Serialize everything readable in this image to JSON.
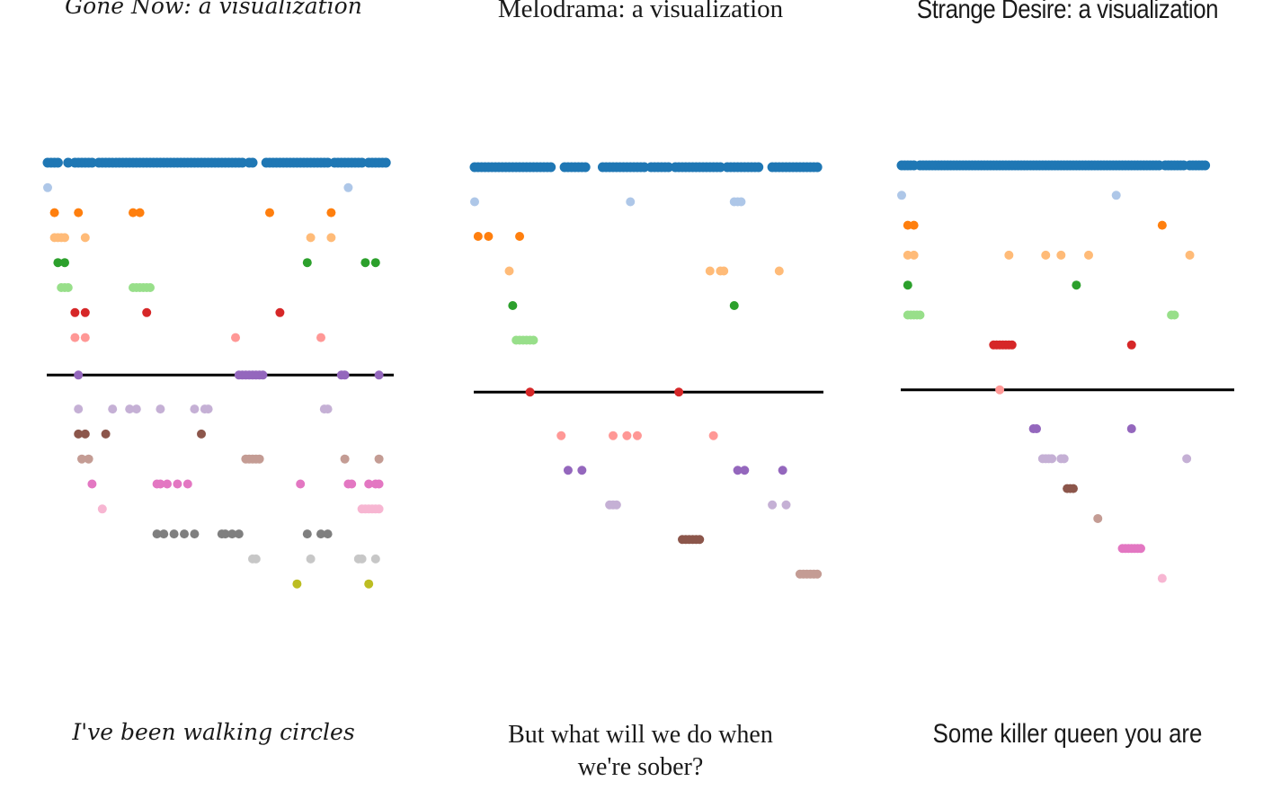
{
  "panels": [
    {
      "title": "Gone Now: a visualization",
      "caption": "I've been walking circles"
    },
    {
      "title": "Melodrama: a visualization",
      "caption": "But what will we do when we're sober?"
    },
    {
      "title": "Strange Desire: a visualization",
      "caption": "Some killer queen you are"
    }
  ],
  "palette": [
    "#1f77b4",
    "#aec7e8",
    "#ff7f0e",
    "#ffbb78",
    "#2ca02c",
    "#98df8a",
    "#d62728",
    "#ff9896",
    "#9467bd",
    "#c5b0d5",
    "#8c564b",
    "#c49c94",
    "#e377c2",
    "#f7b6d2",
    "#7f7f7f",
    "#c7c7c7",
    "#bcbd22"
  ],
  "chart_data": [
    {
      "type": "scatter",
      "title": "Gone Now: a visualization",
      "caption": "I've been walking circles",
      "xlim": [
        0,
        100
      ],
      "baseline_row": 8,
      "rows": [
        {
          "color": "#1f77b4",
          "points": [
            0,
            1,
            2,
            3,
            6,
            8,
            9,
            10,
            11,
            12,
            13,
            15,
            16,
            17,
            18,
            19,
            20,
            21,
            22,
            23,
            24,
            25,
            26,
            27,
            28,
            29,
            30,
            31,
            32,
            33,
            34,
            35,
            36,
            37,
            38,
            39,
            40,
            41,
            42,
            43,
            44,
            45,
            46,
            47,
            48,
            49,
            50,
            51,
            52,
            53,
            54,
            55,
            56,
            57,
            59,
            60,
            64,
            65,
            66,
            67,
            68,
            69,
            70,
            71,
            72,
            73,
            74,
            75,
            76,
            77,
            78,
            79,
            80,
            81,
            82,
            84,
            85,
            86,
            87,
            88,
            89,
            90,
            91,
            92,
            94,
            95,
            96,
            97,
            98,
            99
          ]
        },
        {
          "color": "#aec7e8",
          "points": [
            0,
            88
          ]
        },
        {
          "color": "#ff7f0e",
          "points": [
            2,
            9,
            25,
            27,
            65,
            83
          ]
        },
        {
          "color": "#ffbb78",
          "points": [
            2,
            3,
            4,
            5,
            11,
            77,
            83
          ]
        },
        {
          "color": "#2ca02c",
          "points": [
            3,
            5,
            76,
            93,
            96
          ]
        },
        {
          "color": "#98df8a",
          "points": [
            4,
            5,
            6,
            25,
            26,
            27,
            28,
            29,
            30
          ]
        },
        {
          "color": "#d62728",
          "points": [
            8,
            11,
            29,
            68
          ]
        },
        {
          "color": "#ff9896",
          "points": [
            8,
            11,
            55,
            80
          ]
        },
        {
          "color": "#9467bd",
          "points": [
            9,
            56,
            57,
            58,
            59,
            60,
            61,
            62,
            63,
            86,
            87,
            97
          ]
        },
        {
          "color": "#c5b0d5",
          "points": [
            9,
            19,
            24,
            26,
            33,
            43,
            46,
            47,
            81,
            82
          ]
        },
        {
          "color": "#8c564b",
          "points": [
            9,
            11,
            17,
            45
          ]
        },
        {
          "color": "#c49c94",
          "points": [
            10,
            12,
            58,
            59,
            60,
            61,
            62,
            87,
            97
          ]
        },
        {
          "color": "#e377c2",
          "points": [
            13,
            32,
            33,
            35,
            38,
            41,
            74,
            88,
            89,
            94,
            96,
            97
          ]
        },
        {
          "color": "#f7b6d2",
          "points": [
            16,
            92,
            93,
            94,
            95,
            96,
            97
          ]
        },
        {
          "color": "#7f7f7f",
          "points": [
            32,
            34,
            37,
            40,
            43,
            51,
            52,
            54,
            56,
            76,
            80,
            82
          ]
        },
        {
          "color": "#c7c7c7",
          "points": [
            60,
            61,
            77,
            91,
            92,
            96
          ]
        },
        {
          "color": "#bcbd22",
          "points": [
            73,
            94
          ]
        }
      ]
    },
    {
      "type": "scatter",
      "title": "Melodrama: a visualization",
      "caption": "But what will we do when we're sober?",
      "xlim": [
        0,
        100
      ],
      "baseline_row": 6,
      "rows": [
        {
          "color": "#1f77b4",
          "points": [
            0,
            1,
            2,
            3,
            4,
            5,
            6,
            7,
            8,
            9,
            10,
            11,
            12,
            13,
            14,
            15,
            16,
            17,
            18,
            19,
            20,
            21,
            22,
            26,
            27,
            28,
            29,
            30,
            31,
            32,
            37,
            38,
            39,
            40,
            41,
            42,
            43,
            44,
            45,
            46,
            47,
            48,
            49,
            51,
            52,
            53,
            54,
            55,
            56,
            58,
            59,
            60,
            61,
            62,
            63,
            64,
            65,
            66,
            67,
            68,
            69,
            70,
            71,
            73,
            74,
            75,
            76,
            77,
            78,
            79,
            80,
            81,
            82,
            86,
            87,
            88,
            89,
            90,
            91,
            92,
            93,
            94,
            95,
            96,
            97,
            98,
            99
          ]
        },
        {
          "color": "#aec7e8",
          "points": [
            0,
            45,
            75,
            76,
            77
          ]
        },
        {
          "color": "#ff7f0e",
          "points": [
            1,
            4,
            13
          ]
        },
        {
          "color": "#ffbb78",
          "points": [
            10,
            68,
            71,
            72,
            88
          ]
        },
        {
          "color": "#2ca02c",
          "points": [
            11,
            75
          ]
        },
        {
          "color": "#98df8a",
          "points": [
            12,
            13,
            14,
            15,
            16,
            17
          ]
        },
        {
          "color": "#d62728",
          "points": [
            16,
            59
          ]
        },
        {
          "color": "#ff9896",
          "points": [
            25,
            40,
            44,
            47,
            69
          ]
        },
        {
          "color": "#9467bd",
          "points": [
            27,
            31,
            76,
            78,
            89
          ]
        },
        {
          "color": "#c5b0d5",
          "points": [
            39,
            40,
            41,
            86,
            90
          ]
        },
        {
          "color": "#8c564b",
          "points": [
            60,
            61,
            62,
            63,
            64,
            65
          ]
        },
        {
          "color": "#c49c94",
          "points": [
            94,
            95,
            96,
            97,
            98,
            99
          ]
        }
      ]
    },
    {
      "type": "scatter",
      "title": "Strange Desire: a visualization",
      "caption": "Some killer queen you are",
      "xlim": [
        0,
        100
      ],
      "baseline_row": 7,
      "rows": [
        {
          "color": "#1f77b4",
          "points": [
            0,
            1,
            2,
            3,
            4,
            6,
            7,
            8,
            9,
            10,
            11,
            12,
            13,
            14,
            15,
            16,
            17,
            18,
            19,
            20,
            21,
            22,
            23,
            24,
            25,
            26,
            27,
            28,
            29,
            30,
            31,
            32,
            33,
            34,
            35,
            36,
            37,
            38,
            39,
            40,
            41,
            42,
            43,
            44,
            45,
            46,
            47,
            48,
            49,
            50,
            51,
            52,
            53,
            54,
            55,
            56,
            57,
            58,
            59,
            60,
            61,
            62,
            63,
            64,
            65,
            66,
            67,
            68,
            69,
            70,
            71,
            72,
            73,
            74,
            75,
            76,
            77,
            78,
            79,
            80,
            81,
            82,
            83,
            84,
            86,
            87,
            88,
            89,
            90,
            91,
            92,
            94,
            95,
            96,
            97,
            98,
            99
          ]
        },
        {
          "color": "#aec7e8",
          "points": [
            0,
            70
          ]
        },
        {
          "color": "#ff7f0e",
          "points": [
            2,
            4,
            85
          ]
        },
        {
          "color": "#ffbb78",
          "points": [
            2,
            4,
            35,
            47,
            52,
            61,
            94
          ]
        },
        {
          "color": "#2ca02c",
          "points": [
            2,
            57
          ]
        },
        {
          "color": "#98df8a",
          "points": [
            2,
            3,
            4,
            5,
            6,
            88,
            89
          ]
        },
        {
          "color": "#d62728",
          "points": [
            30,
            31,
            32,
            33,
            34,
            35,
            36,
            75
          ]
        },
        {
          "color": "#ff9896",
          "points": [
            32
          ]
        },
        {
          "color": "#9467bd",
          "points": [
            43,
            44,
            75
          ]
        },
        {
          "color": "#c5b0d5",
          "points": [
            46,
            47,
            48,
            49,
            52,
            53,
            93
          ]
        },
        {
          "color": "#8c564b",
          "points": [
            54,
            55,
            56
          ]
        },
        {
          "color": "#c49c94",
          "points": [
            64
          ]
        },
        {
          "color": "#e377c2",
          "points": [
            72,
            73,
            74,
            75,
            76,
            77,
            78
          ]
        },
        {
          "color": "#f7b6d2",
          "points": [
            85
          ]
        }
      ]
    }
  ]
}
